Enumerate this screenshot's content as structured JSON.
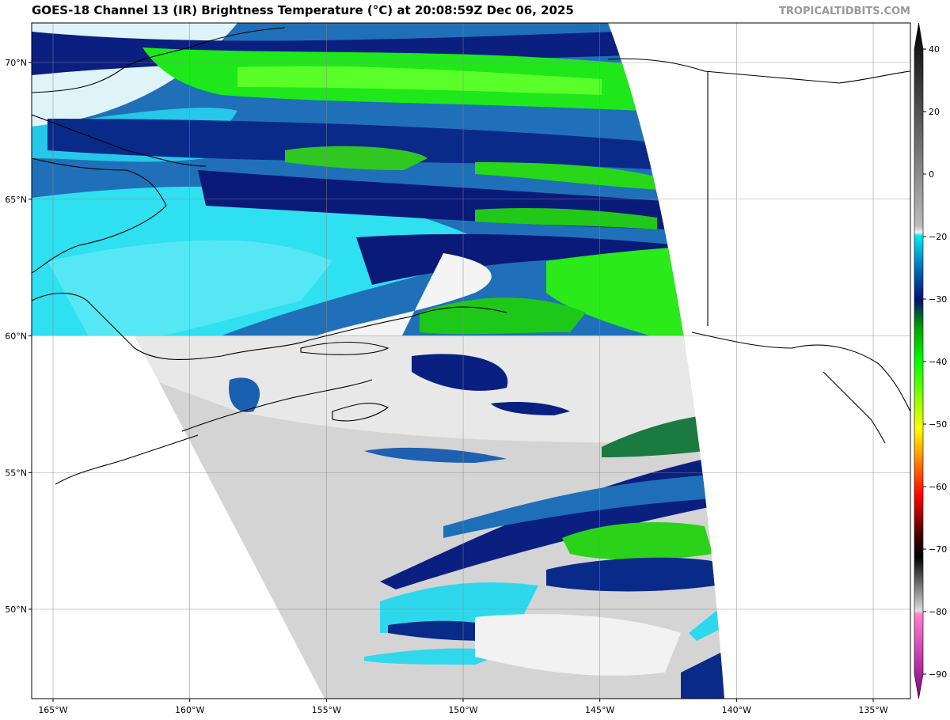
{
  "header": {
    "title": "GOES-18 Channel 13 (IR) Brightness Temperature (°C) at 20:08:59Z Dec 06, 2025",
    "watermark": "TROPICALTIDBITS.COM"
  },
  "map": {
    "lon_ticks": [
      {
        "value": -165,
        "label": "165°W"
      },
      {
        "value": -160,
        "label": "160°W"
      },
      {
        "value": -155,
        "label": "155°W"
      },
      {
        "value": -150,
        "label": "150°W"
      },
      {
        "value": -145,
        "label": "145°W"
      },
      {
        "value": -140,
        "label": "140°W"
      },
      {
        "value": -135,
        "label": "135°W"
      }
    ],
    "lat_ticks": [
      {
        "value": 70,
        "label": "70°N"
      },
      {
        "value": 65,
        "label": "65°N"
      },
      {
        "value": 60,
        "label": "60°N"
      },
      {
        "value": 55,
        "label": "55°N"
      },
      {
        "value": 50,
        "label": "50°N"
      }
    ]
  },
  "colorbar": {
    "ticks": [
      40,
      20,
      0,
      {
        "value": -20,
        "label": "−20"
      },
      {
        "value": -30,
        "label": "−30"
      },
      {
        "value": -40,
        "label": "−40"
      },
      {
        "value": -50,
        "label": "−50"
      },
      {
        "value": -60,
        "label": "−60"
      },
      {
        "value": -70,
        "label": "−70"
      },
      {
        "value": -80,
        "label": "−80"
      },
      {
        "value": -90,
        "label": "−90"
      }
    ]
  }
}
